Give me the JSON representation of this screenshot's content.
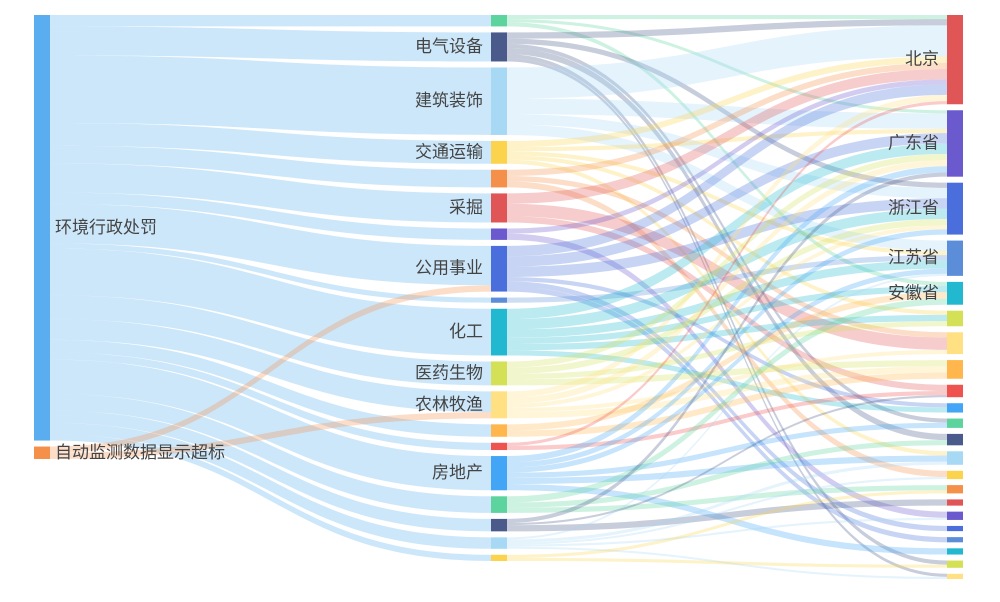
{
  "chart_data": {
    "type": "sankey",
    "columns": [
      [
        {
          "id": "s0",
          "label": "环境行政处罚",
          "color": "#5aaef0"
        },
        {
          "id": "s1",
          "label": "自动监测数据显示超标",
          "color": "#f5904a"
        }
      ],
      [
        {
          "id": "m0",
          "color": "#5dd39e"
        },
        {
          "id": "m1",
          "label": "电气设备",
          "color": "#4a5a8a"
        },
        {
          "id": "m2",
          "label": "建筑装饰",
          "color": "#a7d8f4"
        },
        {
          "id": "m3",
          "label": "交通运输",
          "color": "#fcd34d"
        },
        {
          "id": "m4",
          "color": "#f5904a"
        },
        {
          "id": "m5",
          "label": "采掘",
          "color": "#e05555"
        },
        {
          "id": "m6",
          "color": "#6a5acd"
        },
        {
          "id": "m7",
          "label": "公用事业",
          "color": "#4a6fdc"
        },
        {
          "id": "m8",
          "color": "#5b8dd9"
        },
        {
          "id": "m9",
          "label": "化工",
          "color": "#22b8cf"
        },
        {
          "id": "m10",
          "label": "医药生物",
          "color": "#d4e157"
        },
        {
          "id": "m11",
          "label": "农林牧渔",
          "color": "#ffe082"
        },
        {
          "id": "m12",
          "color": "#ffb74d"
        },
        {
          "id": "m13",
          "color": "#ef5350"
        },
        {
          "id": "m14",
          "label": "房地产",
          "color": "#42a5f5"
        },
        {
          "id": "m15",
          "color": "#5dd39e"
        },
        {
          "id": "m16",
          "color": "#4a5a8a"
        },
        {
          "id": "m17",
          "color": "#a7d8f4"
        },
        {
          "id": "m18",
          "color": "#fcd34d"
        }
      ],
      [
        {
          "id": "r0",
          "label": "北京",
          "color": "#e05555"
        },
        {
          "id": "r1",
          "label": "广东省",
          "color": "#6a5acd"
        },
        {
          "id": "r2",
          "label": "浙江省",
          "color": "#4a6fdc"
        },
        {
          "id": "r3",
          "label": "江苏省",
          "color": "#5b8dd9"
        },
        {
          "id": "r4",
          "label": "安徽省",
          "color": "#22b8cf"
        },
        {
          "id": "r5",
          "color": "#d4e157"
        },
        {
          "id": "r6",
          "color": "#ffe082"
        },
        {
          "id": "r7",
          "color": "#ffb74d"
        },
        {
          "id": "r8",
          "color": "#ef5350"
        },
        {
          "id": "r9",
          "color": "#42a5f5"
        },
        {
          "id": "r10",
          "color": "#5dd39e"
        },
        {
          "id": "r11",
          "color": "#4a5a8a"
        },
        {
          "id": "r12",
          "color": "#a7d8f4"
        },
        {
          "id": "r13",
          "color": "#fcd34d"
        },
        {
          "id": "r14",
          "color": "#f5904a"
        },
        {
          "id": "r15",
          "color": "#e05555"
        },
        {
          "id": "r16",
          "color": "#6a5acd"
        },
        {
          "id": "r17",
          "color": "#4a6fdc"
        },
        {
          "id": "r18",
          "color": "#5b8dd9"
        },
        {
          "id": "r19",
          "color": "#22b8cf"
        },
        {
          "id": "r20",
          "color": "#d4e157"
        },
        {
          "id": "r21",
          "color": "#ffe082"
        }
      ]
    ],
    "links": [
      [
        "s0",
        "m0",
        11
      ],
      [
        "s0",
        "m1",
        28
      ],
      [
        "s0",
        "m2",
        65
      ],
      [
        "s0",
        "m3",
        22
      ],
      [
        "s0",
        "m4",
        17
      ],
      [
        "s0",
        "m5",
        28
      ],
      [
        "s0",
        "m6",
        11
      ],
      [
        "s0",
        "m7",
        38
      ],
      [
        "s0",
        "m8",
        5
      ],
      [
        "s0",
        "m9",
        45
      ],
      [
        "s0",
        "m10",
        23
      ],
      [
        "s0",
        "m11",
        20
      ],
      [
        "s0",
        "m12",
        12
      ],
      [
        "s0",
        "m13",
        7
      ],
      [
        "s0",
        "m14",
        33
      ],
      [
        "s0",
        "m15",
        16
      ],
      [
        "s0",
        "m16",
        12
      ],
      [
        "s0",
        "m17",
        11
      ],
      [
        "s0",
        "m18",
        6
      ],
      [
        "s1",
        "m7",
        6
      ],
      [
        "s1",
        "m11",
        6
      ],
      [
        "m0",
        "r0",
        4
      ],
      [
        "m0",
        "r1",
        3
      ],
      [
        "m0",
        "r4",
        4
      ],
      [
        "m1",
        "r0",
        6
      ],
      [
        "m1",
        "r2",
        5
      ],
      [
        "m1",
        "r10",
        4
      ],
      [
        "m1",
        "r11",
        6
      ],
      [
        "m1",
        "r20",
        4
      ],
      [
        "m1",
        "r21",
        3
      ],
      [
        "m2",
        "r0",
        30
      ],
      [
        "m2",
        "r1",
        15
      ],
      [
        "m2",
        "r2",
        10
      ],
      [
        "m2",
        "r3",
        10
      ],
      [
        "m3",
        "r0",
        6
      ],
      [
        "m3",
        "r1",
        4
      ],
      [
        "m3",
        "r3",
        4
      ],
      [
        "m3",
        "r5",
        4
      ],
      [
        "m3",
        "r12",
        4
      ],
      [
        "m4",
        "r0",
        6
      ],
      [
        "m4",
        "r6",
        5
      ],
      [
        "m4",
        "r13",
        6
      ],
      [
        "m5",
        "r0",
        10
      ],
      [
        "m5",
        "r6",
        12
      ],
      [
        "m5",
        "r8",
        6
      ],
      [
        "m6",
        "r0",
        5
      ],
      [
        "m6",
        "r16",
        6
      ],
      [
        "m7",
        "r0",
        10
      ],
      [
        "m7",
        "r1",
        10
      ],
      [
        "m7",
        "r2",
        10
      ],
      [
        "m7",
        "r9",
        4
      ],
      [
        "m7",
        "r17",
        5
      ],
      [
        "m7",
        "r18",
        5
      ],
      [
        "m8",
        "r3",
        5
      ],
      [
        "m9",
        "r1",
        10
      ],
      [
        "m9",
        "r2",
        10
      ],
      [
        "m9",
        "r3",
        8
      ],
      [
        "m9",
        "r4",
        6
      ],
      [
        "m9",
        "r5",
        6
      ],
      [
        "m9",
        "r9",
        5
      ],
      [
        "m10",
        "r1",
        6
      ],
      [
        "m10",
        "r2",
        6
      ],
      [
        "m10",
        "r5",
        5
      ],
      [
        "m10",
        "r7",
        6
      ],
      [
        "m11",
        "r0",
        6
      ],
      [
        "m11",
        "r1",
        6
      ],
      [
        "m11",
        "r2",
        4
      ],
      [
        "m11",
        "r6",
        4
      ],
      [
        "m11",
        "r7",
        6
      ],
      [
        "m12",
        "r4",
        6
      ],
      [
        "m12",
        "r7",
        6
      ],
      [
        "m13",
        "r0",
        3
      ],
      [
        "m13",
        "r8",
        4
      ],
      [
        "m14",
        "r1",
        6
      ],
      [
        "m14",
        "r2",
        5
      ],
      [
        "m14",
        "r3",
        5
      ],
      [
        "m14",
        "r10",
        5
      ],
      [
        "m14",
        "r12",
        6
      ],
      [
        "m14",
        "r19",
        6
      ],
      [
        "m15",
        "r4",
        6
      ],
      [
        "m15",
        "r11",
        5
      ],
      [
        "m15",
        "r14",
        5
      ],
      [
        "m16",
        "r15",
        6
      ],
      [
        "m16",
        "r8",
        2
      ],
      [
        "m16",
        "r1",
        4
      ],
      [
        "m17",
        "r3",
        2
      ],
      [
        "m17",
        "r12",
        3
      ],
      [
        "m17",
        "r13",
        2
      ],
      [
        "m17",
        "r16",
        2
      ],
      [
        "m17",
        "r21",
        2
      ],
      [
        "m18",
        "r14",
        3
      ],
      [
        "m18",
        "r20",
        3
      ]
    ]
  }
}
